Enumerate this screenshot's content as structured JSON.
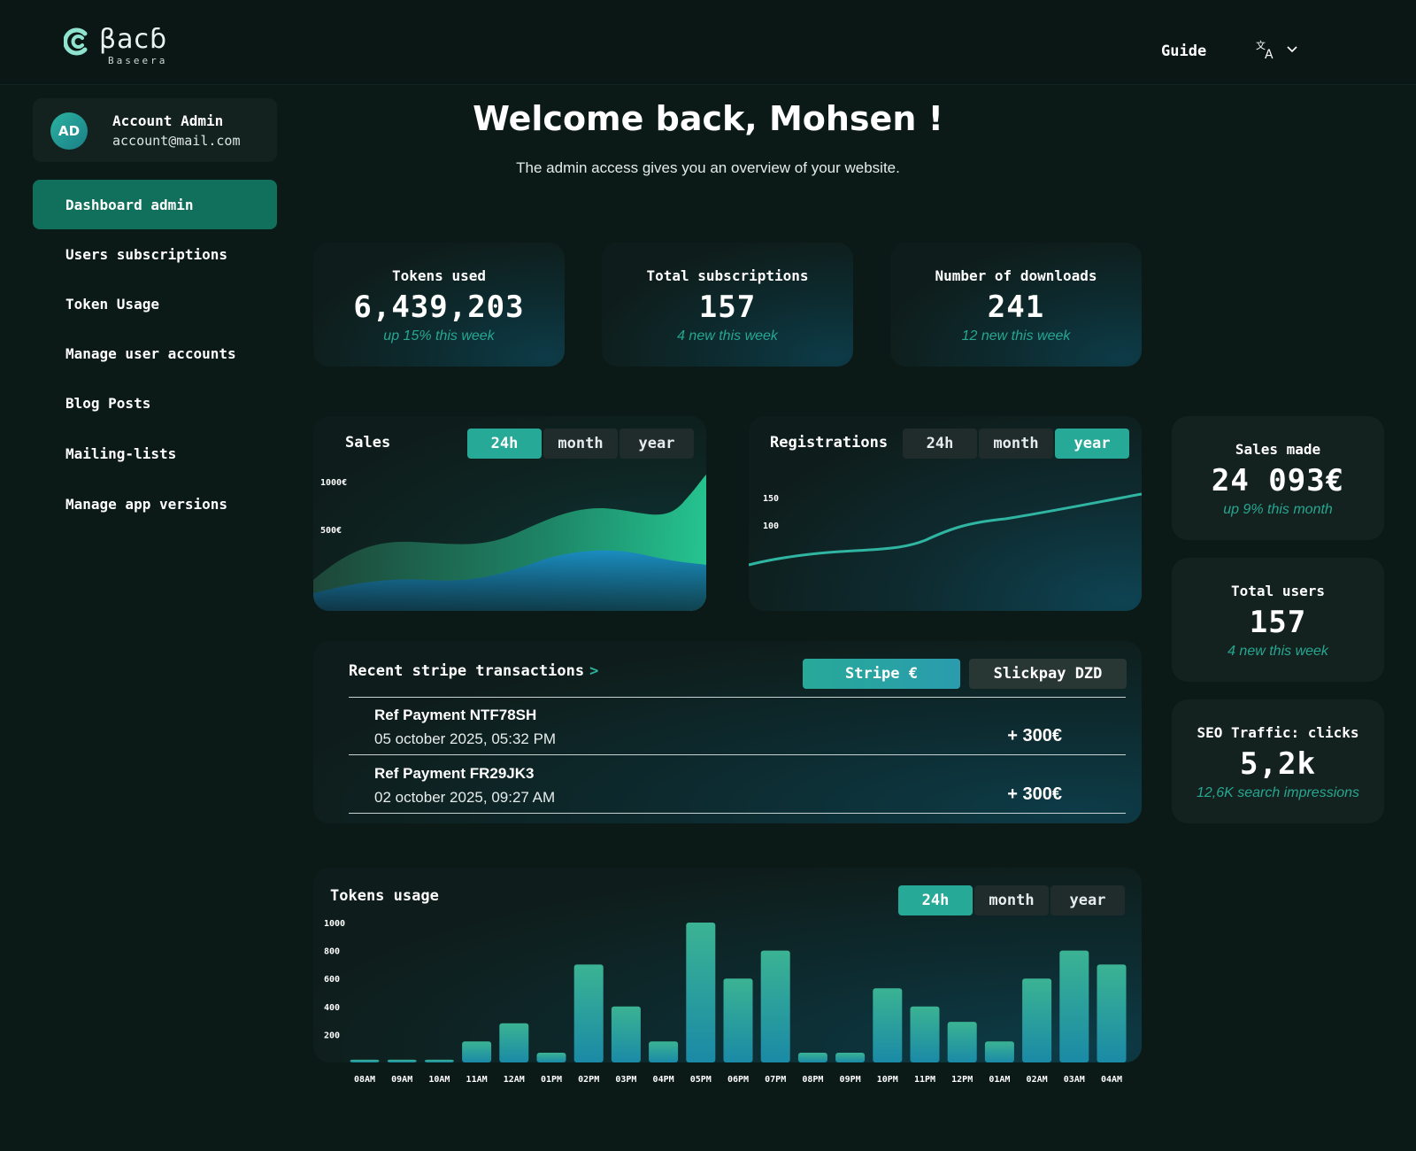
{
  "brand": {
    "word": "βacɓ",
    "sub": "Baseera"
  },
  "header": {
    "guide": "Guide"
  },
  "profile": {
    "initials": "AD",
    "name": "Account Admin",
    "email": "account@mail.com"
  },
  "nav": [
    {
      "label": "Dashboard admin",
      "active": true
    },
    {
      "label": "Users subscriptions"
    },
    {
      "label": "Token Usage"
    },
    {
      "label": "Manage user accounts"
    },
    {
      "label": "Blog Posts"
    },
    {
      "label": "Mailing-lists"
    },
    {
      "label": "Manage app versions"
    }
  ],
  "welcome": {
    "title": "Welcome back, Mohsen !",
    "subtitle": "The admin access gives you an overview of your website."
  },
  "stats": [
    {
      "label": "Tokens used",
      "value": "6,439,203",
      "note": "up 15% this week"
    },
    {
      "label": "Total subscriptions",
      "value": "157",
      "note": "4 new this week"
    },
    {
      "label": "Number of downloads",
      "value": "241",
      "note": "12 new this week"
    }
  ],
  "side_stats": [
    {
      "label": "Sales made",
      "value": "24 093€",
      "note": "up 9% this month"
    },
    {
      "label": "Total users",
      "value": "157",
      "note": "4 new this week"
    },
    {
      "label": "SEO Traffic: clicks",
      "value": "5,2k",
      "note": "12,6K search impressions"
    }
  ],
  "periods": {
    "p24": "24h",
    "month": "month",
    "year": "year"
  },
  "sales": {
    "title": "Sales",
    "y1": "1000€",
    "y2": "500€",
    "selected": "24h"
  },
  "registrations": {
    "title": "Registrations",
    "y1": "150",
    "y2": "100",
    "selected": "year"
  },
  "transactions": {
    "title": "Recent stripe transactions",
    "chevron": ">",
    "tab_stripe": "Stripe €",
    "tab_slickpay": "Slickpay DZD",
    "items": [
      {
        "ref": "Ref Payment NTF78SH",
        "date": "05 october 2025, 05:32 PM",
        "amount": "+ 300€"
      },
      {
        "ref": "Ref Payment FR29JK3",
        "date": "02 october 2025, 09:27 AM",
        "amount": "+ 300€"
      }
    ]
  },
  "colors": {
    "accent": "#27a998",
    "active_nav": "#10705b",
    "note": "#26a791"
  },
  "chart_data": {
    "type": "bar",
    "title": "Tokens usage",
    "categories": [
      "08AM",
      "09AM",
      "10AM",
      "11AM",
      "12AM",
      "01PM",
      "02PM",
      "03PM",
      "04PM",
      "05PM",
      "06PM",
      "07PM",
      "08PM",
      "09PM",
      "10PM",
      "11PM",
      "12PM",
      "01AM",
      "02AM",
      "03AM",
      "04AM"
    ],
    "values": [
      20,
      20,
      20,
      150,
      280,
      70,
      700,
      400,
      150,
      1000,
      600,
      800,
      70,
      70,
      530,
      400,
      290,
      150,
      600,
      800,
      700
    ],
    "yticks": [
      1000,
      800,
      600,
      400,
      200
    ],
    "ylim": [
      0,
      1000
    ],
    "selected": "24h"
  }
}
